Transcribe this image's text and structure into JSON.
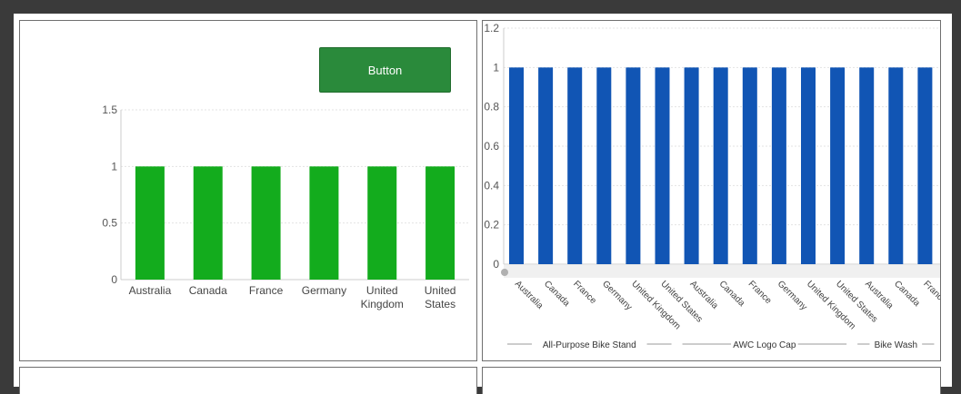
{
  "panel_left": {
    "button_label": "Button",
    "bar_color": "#13ac1d"
  },
  "panel_right": {
    "bar_color": "#1155b4"
  },
  "chart_data": [
    {
      "type": "bar",
      "categories": [
        "Australia",
        "Canada",
        "France",
        "Germany",
        "United Kingdom",
        "United States"
      ],
      "category_lines": [
        [
          "Australia"
        ],
        [
          "Canada"
        ],
        [
          "France"
        ],
        [
          "Germany"
        ],
        [
          "United",
          "Kingdom"
        ],
        [
          "United",
          "States"
        ]
      ],
      "values": [
        1,
        1,
        1,
        1,
        1,
        1
      ],
      "ylim": [
        0,
        1.5
      ],
      "yticks": [
        "0",
        "0.5",
        "1",
        "1.5"
      ],
      "grid": true
    },
    {
      "type": "bar",
      "categories": [
        "Australia",
        "Canada",
        "France",
        "Germany",
        "United Kingdom",
        "United States",
        "Australia",
        "Canada",
        "France",
        "Germany",
        "United Kingdom",
        "United States",
        "Australia",
        "Canada",
        "France"
      ],
      "values": [
        1,
        1,
        1,
        1,
        1,
        1,
        1,
        1,
        1,
        1,
        1,
        1,
        1,
        1,
        1
      ],
      "groups": [
        {
          "label": "All-Purpose Bike Stand",
          "count": 6
        },
        {
          "label": "AWC Logo Cap",
          "count": 6
        },
        {
          "label": "Bike Wash",
          "count": 3
        }
      ],
      "ylim": [
        0,
        1.2
      ],
      "yticks": [
        "0",
        "0.2",
        "0.4",
        "0.6",
        "0.8",
        "1",
        "1.2"
      ],
      "grid": true
    }
  ]
}
